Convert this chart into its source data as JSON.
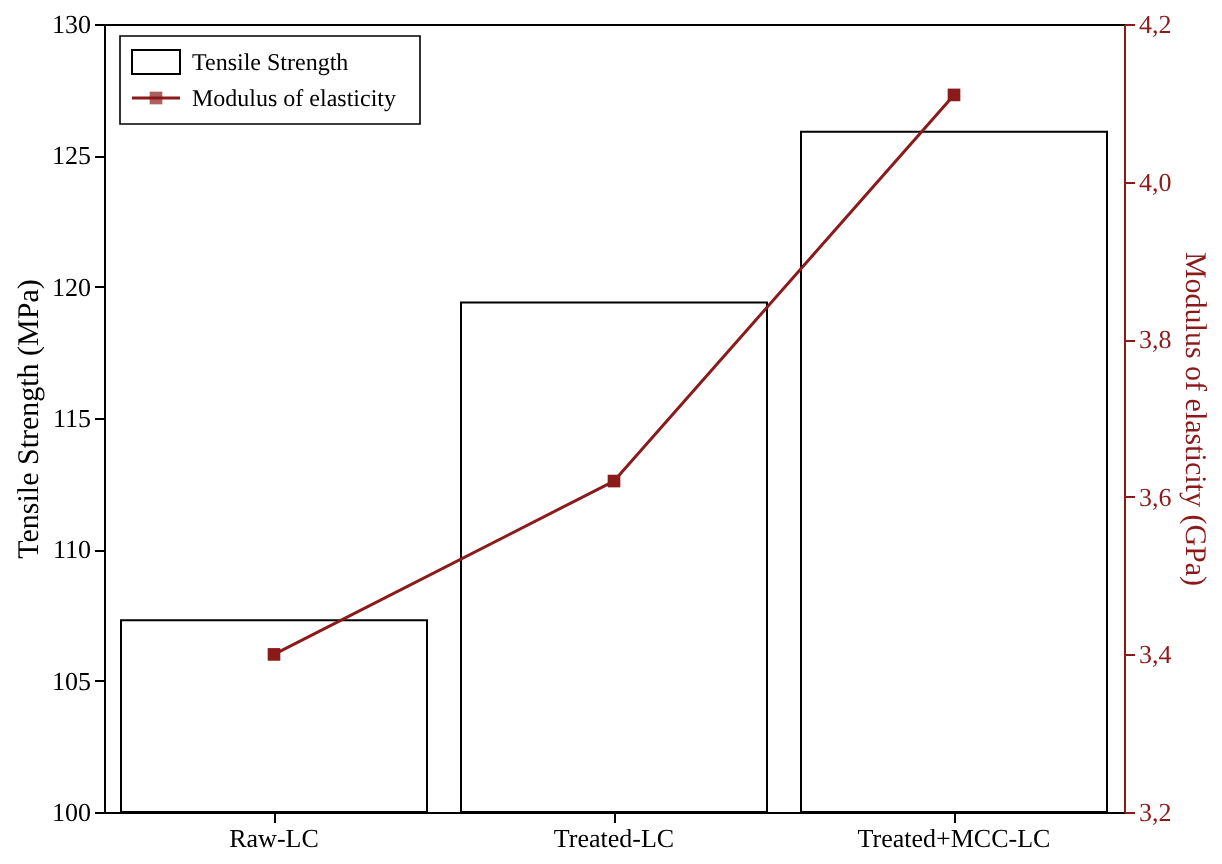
{
  "chart_data": {
    "type": "bar",
    "categories": [
      "Raw-LC",
      "Treated-LC",
      "Treated+MCC-LC"
    ],
    "ylabel": "Tensile Strength (MPa)",
    "y2label": "Modulus of elasticity (GPa)",
    "ylim": [
      100,
      130
    ],
    "yticks": [
      100,
      105,
      110,
      115,
      120,
      125,
      130
    ],
    "y2lim": [
      3.2,
      4.2
    ],
    "y2ticks": [
      {
        "value": 3.2,
        "label": "3,2"
      },
      {
        "value": 3.4,
        "label": "3,4"
      },
      {
        "value": 3.6,
        "label": "3,6"
      },
      {
        "value": 3.8,
        "label": "3,8"
      },
      {
        "value": 4.0,
        "label": "4,0"
      },
      {
        "value": 4.2,
        "label": "4,2"
      }
    ],
    "series": [
      {
        "name": "Tensile Strength",
        "color": "#ffffff",
        "values": [
          107.3,
          119.4,
          125.9
        ]
      },
      {
        "name": "Modulus of elasticity",
        "type": "line",
        "axis": "y2",
        "color": "#8b1a1a",
        "marker": "square",
        "values": [
          3.4,
          3.62,
          4.11
        ]
      }
    ],
    "legend": "top left",
    "grid": false
  }
}
